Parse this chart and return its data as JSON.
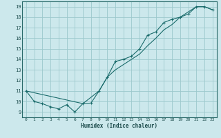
{
  "xlabel": "Humidex (Indice chaleur)",
  "bg_color": "#cce8ec",
  "grid_color": "#9cc8cc",
  "line_color": "#1a6b6b",
  "xlim": [
    -0.5,
    23.5
  ],
  "ylim": [
    8.5,
    19.5
  ],
  "xticks": [
    0,
    1,
    2,
    3,
    4,
    5,
    6,
    7,
    8,
    9,
    10,
    11,
    12,
    13,
    14,
    15,
    16,
    17,
    18,
    19,
    20,
    21,
    22,
    23
  ],
  "yticks": [
    9,
    10,
    11,
    12,
    13,
    14,
    15,
    16,
    17,
    18,
    19
  ],
  "line1_x": [
    0,
    1,
    2,
    3,
    4,
    5,
    6,
    7,
    8,
    9,
    10,
    11,
    12,
    13,
    14,
    15,
    16,
    17,
    18,
    19,
    20,
    21,
    22,
    23
  ],
  "line1_y": [
    11.0,
    10.0,
    9.8,
    9.5,
    9.3,
    9.7,
    9.0,
    9.8,
    9.85,
    11.0,
    12.3,
    13.8,
    14.0,
    14.3,
    15.0,
    16.3,
    16.6,
    17.5,
    17.8,
    18.0,
    18.3,
    19.0,
    19.0,
    18.7
  ],
  "line2_x": [
    0,
    7,
    9,
    10,
    11,
    12,
    13,
    14,
    15,
    16,
    17,
    18,
    19,
    20,
    21,
    22,
    23
  ],
  "line2_y": [
    11.0,
    9.8,
    11.0,
    12.3,
    13.0,
    13.5,
    14.0,
    14.5,
    15.3,
    16.0,
    16.8,
    17.3,
    18.0,
    18.5,
    19.0,
    19.0,
    18.7
  ]
}
